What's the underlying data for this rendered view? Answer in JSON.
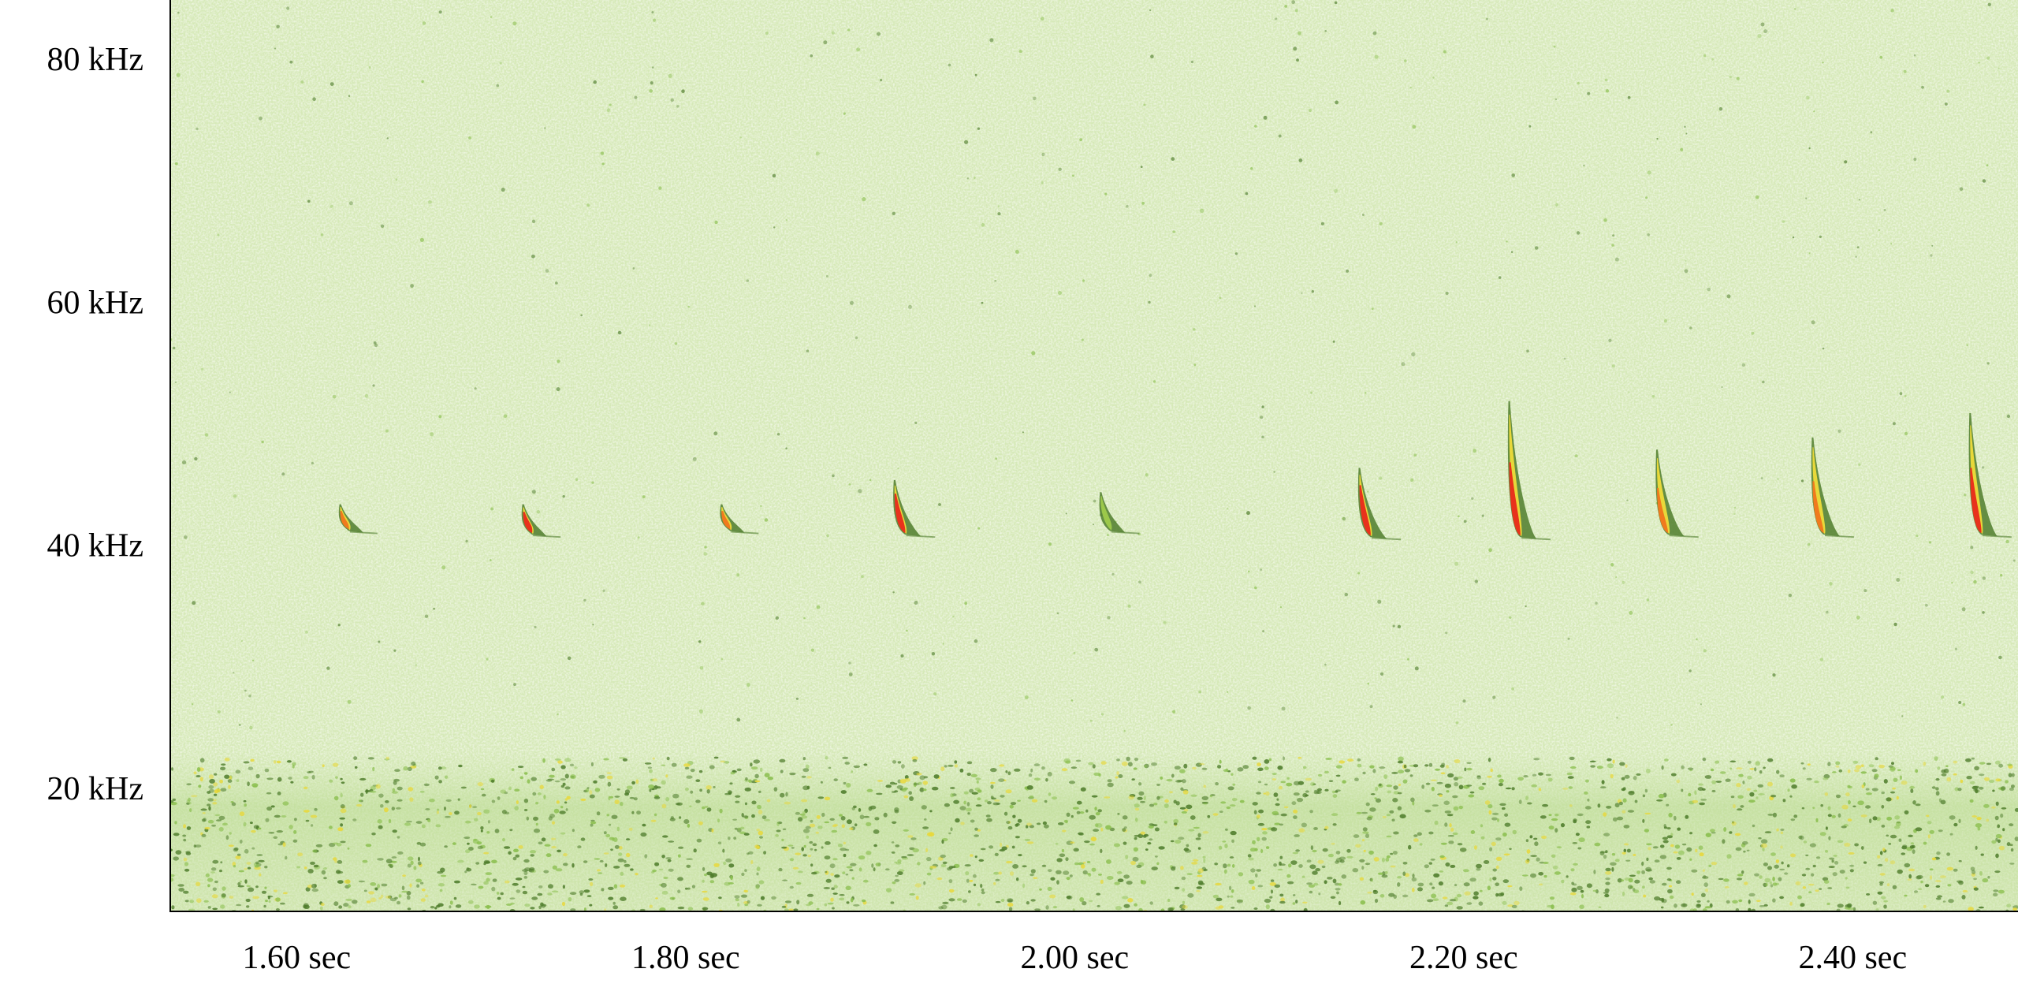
{
  "chart_data": {
    "type": "spectrogram",
    "title": "",
    "xlabel": "",
    "ylabel": "",
    "x_unit": "sec",
    "y_unit": "kHz",
    "xlim": [
      1.535,
      2.485
    ],
    "ylim": [
      10,
      85
    ],
    "x_ticks": [
      {
        "value": 1.6,
        "label": "1.60 sec"
      },
      {
        "value": 1.8,
        "label": "1.80 sec"
      },
      {
        "value": 2.0,
        "label": "2.00 sec"
      },
      {
        "value": 2.2,
        "label": "2.20 sec"
      },
      {
        "value": 2.4,
        "label": "2.40 sec"
      }
    ],
    "y_ticks": [
      {
        "value": 20,
        "label": "20 kHz"
      },
      {
        "value": 40,
        "label": "40 kHz"
      },
      {
        "value": 60,
        "label": "60 kHz"
      },
      {
        "value": 80,
        "label": "80 kHz"
      }
    ],
    "grid": false,
    "colors": {
      "background": "#d6e9b8",
      "noise_dark": "#4f7d2c",
      "noise_mid": "#8bbf4f",
      "low": "#9cc84a",
      "mid": "#e8d83a",
      "high": "#f07a1e",
      "peak": "#e8321c"
    },
    "calls": [
      {
        "t": 1.622,
        "f_start": 43.5,
        "f_end": 41.3,
        "intensity": "mid"
      },
      {
        "t": 1.716,
        "f_start": 43.5,
        "f_end": 41.0,
        "intensity": "high"
      },
      {
        "t": 1.818,
        "f_start": 43.5,
        "f_end": 41.3,
        "intensity": "mid"
      },
      {
        "t": 1.907,
        "f_start": 45.5,
        "f_end": 41.0,
        "intensity": "high"
      },
      {
        "t": 2.013,
        "f_start": 44.5,
        "f_end": 41.3,
        "intensity": "low"
      },
      {
        "t": 2.146,
        "f_start": 46.5,
        "f_end": 40.8,
        "intensity": "high"
      },
      {
        "t": 2.223,
        "f_start": 52.0,
        "f_end": 40.8,
        "intensity": "high"
      },
      {
        "t": 2.299,
        "f_start": 48.0,
        "f_end": 41.0,
        "intensity": "mid"
      },
      {
        "t": 2.379,
        "f_start": 49.0,
        "f_end": 41.0,
        "intensity": "mid"
      },
      {
        "t": 2.46,
        "f_start": 51.0,
        "f_end": 41.0,
        "intensity": "high"
      }
    ],
    "noise_band": {
      "f_low": 10,
      "f_high": 22
    }
  }
}
